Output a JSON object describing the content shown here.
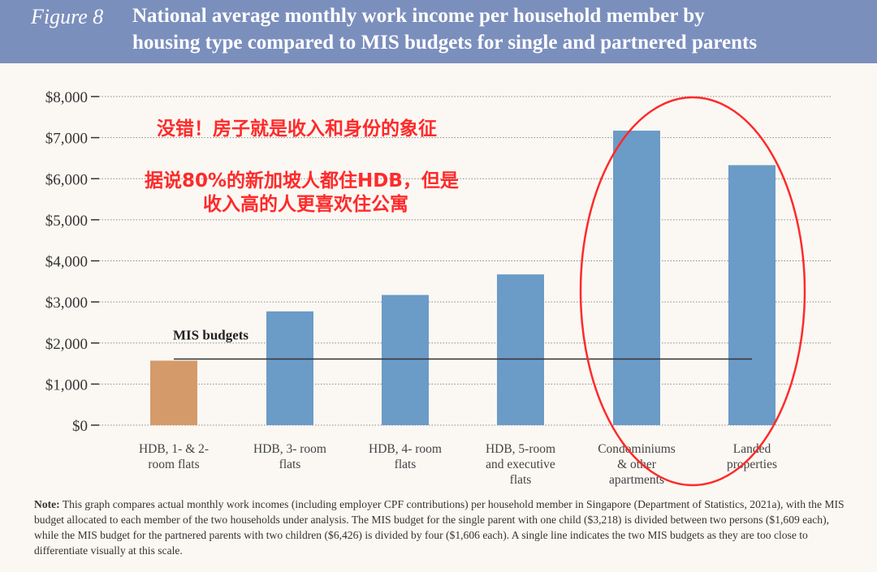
{
  "header": {
    "figure_label": "Figure 8",
    "title_line1": "National average monthly work income per household member by",
    "title_line2": "housing type compared to MIS budgets for single and partnered parents"
  },
  "chart_data": {
    "type": "bar",
    "title": "National average monthly work income per household member by housing type compared to MIS budgets for single and partnered parents",
    "xlabel": "",
    "ylabel": "",
    "ylim": [
      0,
      8000
    ],
    "yticks": [
      0,
      1000,
      2000,
      3000,
      4000,
      5000,
      6000,
      7000,
      8000
    ],
    "ytick_labels": [
      "$0",
      "$1,000",
      "$2,000",
      "$3,000",
      "$4,000",
      "$5,000",
      "$6,000",
      "$7,000",
      "$8,000"
    ],
    "grid": true,
    "categories": [
      [
        "HDB, 1- & 2-",
        "room flats"
      ],
      [
        "HDB, 3- room",
        "flats"
      ],
      [
        "HDB, 4- room",
        "flats"
      ],
      [
        "HDB, 5-room",
        "and executive",
        "flats"
      ],
      [
        "Condominiums",
        "& other",
        "apartments"
      ],
      [
        "Landed",
        "properties"
      ]
    ],
    "values": [
      1570,
      2770,
      3170,
      3670,
      7170,
      6330
    ],
    "bar_colors": [
      "#d49a6a",
      "#6b9bc7",
      "#6b9bc7",
      "#6b9bc7",
      "#6b9bc7",
      "#6b9bc7"
    ],
    "mis_budget": {
      "label": "MIS budgets",
      "value": 1609
    }
  },
  "annotations": {
    "line1": "没错！房子就是收入和身份的象征",
    "line2": "据说80%的新加坡人都住HDB，但是",
    "line3": "收入高的人更喜欢住公寓",
    "color": "#ff2a2a"
  },
  "note": {
    "label": "Note:",
    "text": " This graph compares actual monthly work incomes (including employer CPF contributions) per household member in Singapore (Department of Statistics, 2021a), with the MIS budget allocated to each member of the two households under analysis. The MIS budget for the single parent with one child ($3,218) is divided between two persons ($1,609 each), while the MIS budget for the partnered parents with two children ($6,426) is divided by four ($1,606 each). A single line indicates the two MIS budgets as they are too close to differentiate visually at this scale."
  }
}
